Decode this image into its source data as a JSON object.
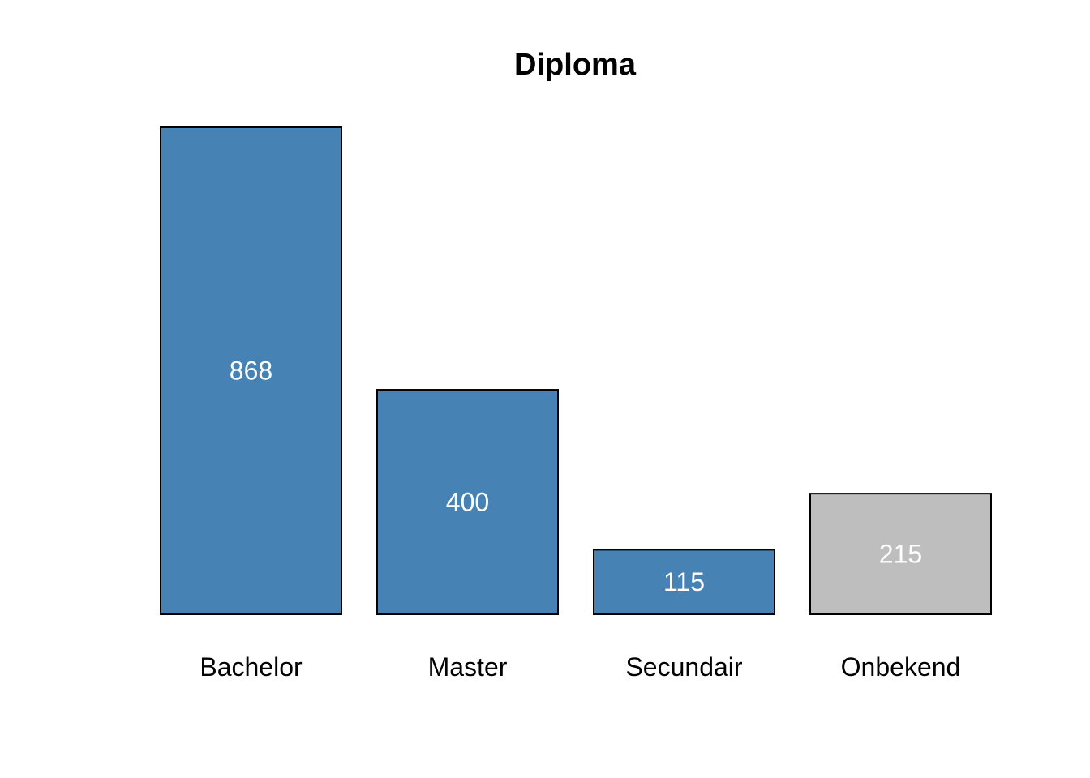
{
  "chart_data": {
    "type": "bar",
    "title": "Diploma",
    "xlabel": "",
    "ylabel": "",
    "categories": [
      "Bachelor",
      "Master",
      "Secundair",
      "Onbekend"
    ],
    "values": [
      868,
      400,
      115,
      215
    ],
    "bar_colors": [
      "#4682b4",
      "#4682b4",
      "#4682b4",
      "#bebebe"
    ],
    "bar_outline_color": "#000000",
    "value_label_color": "#ffffff",
    "grid": false,
    "axes_visible": false,
    "legend": "none",
    "ylim": [
      0,
      868
    ]
  }
}
